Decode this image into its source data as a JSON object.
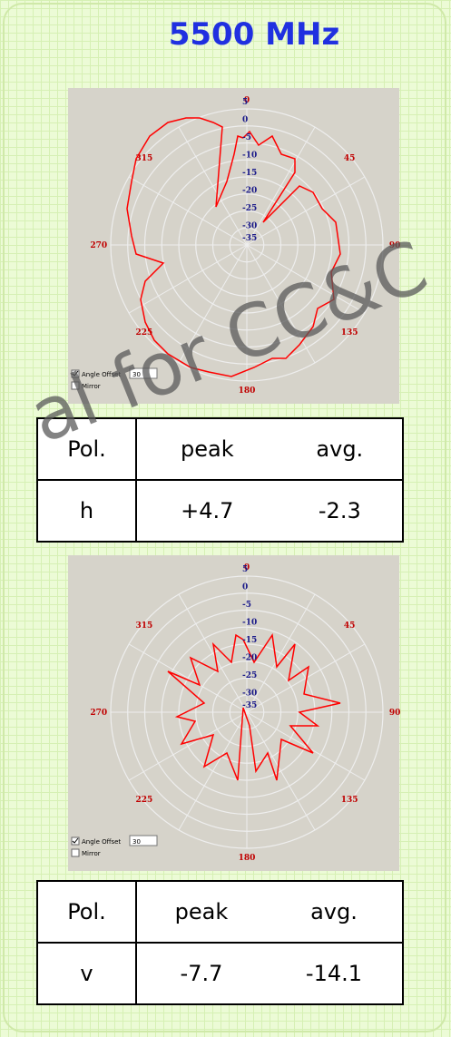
{
  "title": "5500 MHz",
  "plots": [
    {
      "angle_labels": [
        "0",
        "45",
        "90",
        "135",
        "180",
        "225",
        "270",
        "315"
      ],
      "radial_labels": [
        "5",
        "0",
        "-5",
        "-10",
        "-15",
        "-20",
        "-25",
        "-30",
        "-35"
      ],
      "angle_offset_label": "Angle Offset",
      "angle_offset_value": "30",
      "mirror_label": "Mirror"
    },
    {
      "angle_labels": [
        "0",
        "45",
        "90",
        "135",
        "180",
        "225",
        "270",
        "315"
      ],
      "radial_labels": [
        "5",
        "0",
        "-5",
        "-10",
        "-15",
        "-20",
        "-25",
        "-30",
        "-35"
      ],
      "angle_offset_label": "Angle Offset",
      "angle_offset_value": "30",
      "mirror_label": "Mirror"
    }
  ],
  "tables": [
    {
      "header": [
        "Pol.",
        "peak",
        "avg."
      ],
      "row": [
        "h",
        "+4.7",
        "-2.3"
      ]
    },
    {
      "header": [
        "Pol.",
        "peak",
        "avg."
      ],
      "row": [
        "v",
        "-7.7",
        "-14.1"
      ]
    }
  ],
  "watermark": "al for CC&C"
}
